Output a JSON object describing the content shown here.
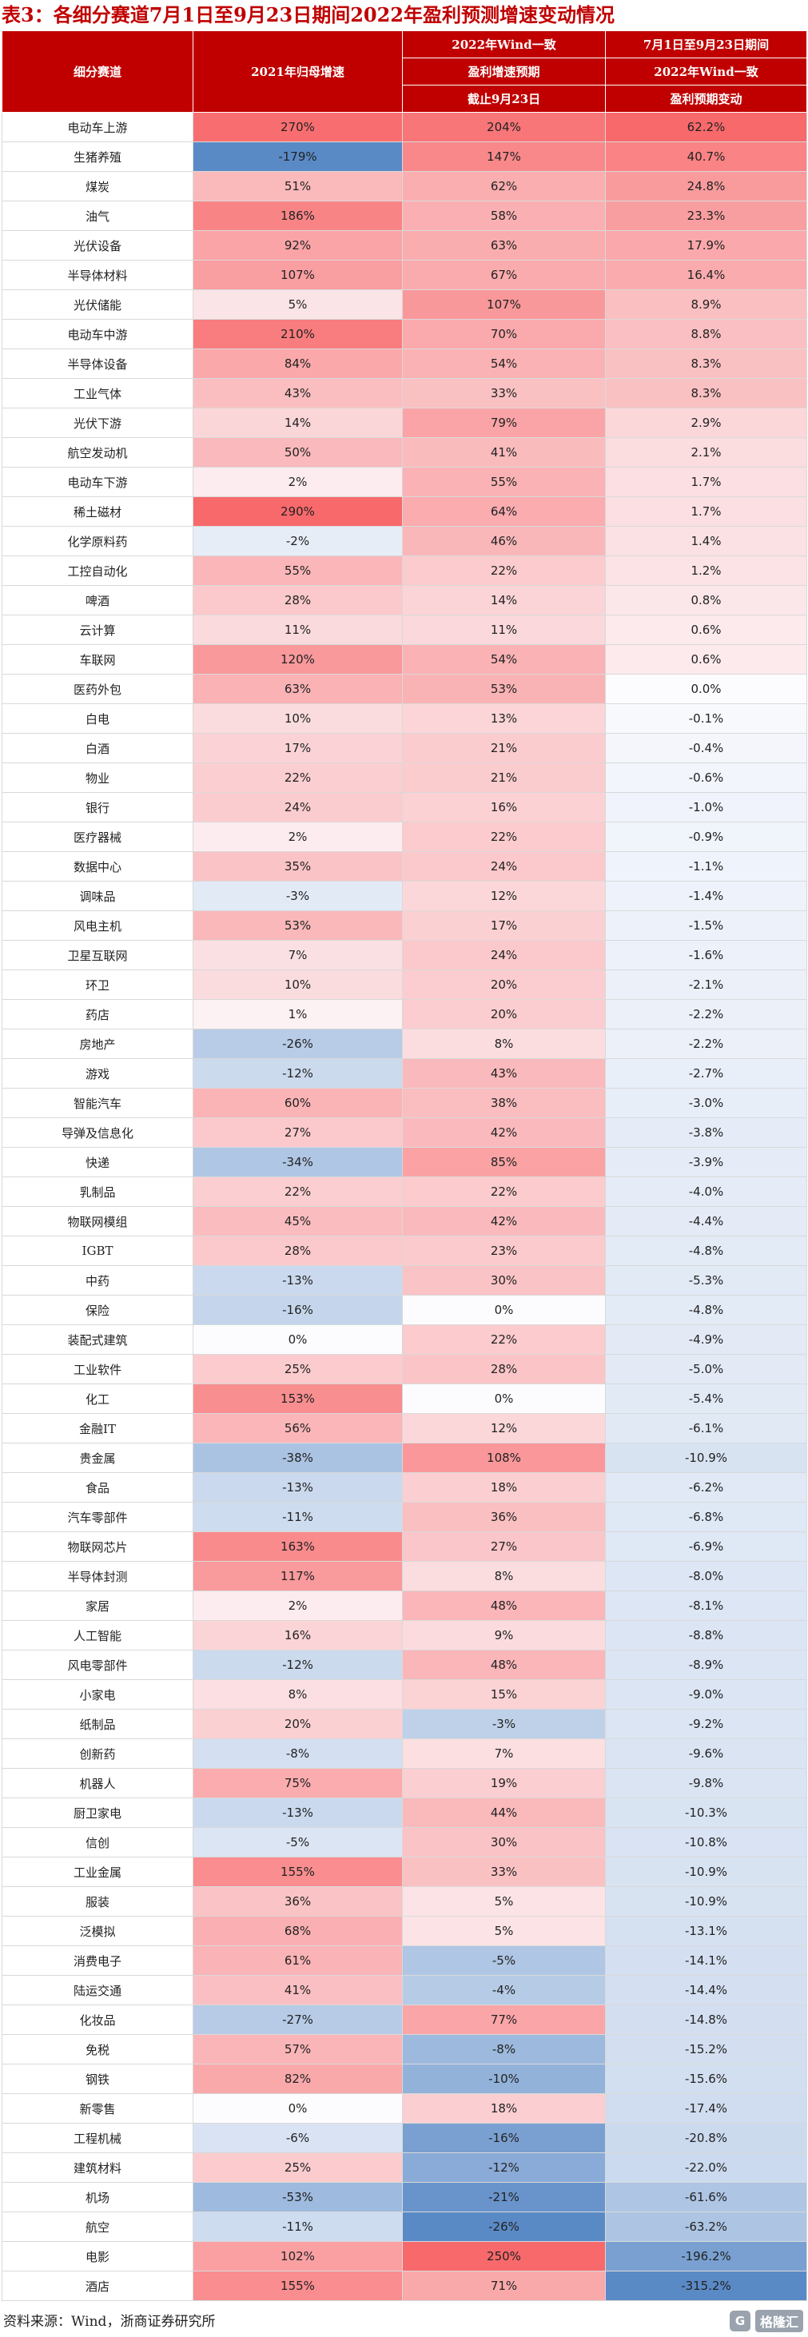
{
  "title": "表3：各细分赛道7月1日至9月23日期间2022年盈利预测增速变动情况",
  "headers": {
    "segment": "细分赛道",
    "growth2021": "2021年归母增速",
    "forecast_line1": "2022年Wind一致",
    "forecast_line2": "盈利增速预期",
    "forecast_line3": "截止9月23日",
    "change_line1": "7月1日至9月23日期间",
    "change_line2": "2022年Wind一致",
    "change_line3": "盈利预期变动"
  },
  "colors": {
    "header_bg": "#c00000",
    "positive": "#f8696b",
    "negative": "#5a8ac6"
  },
  "rows": [
    {
      "name": "电动车上游",
      "g21": "270%",
      "f22": "204%",
      "chg": "62.2%"
    },
    {
      "name": "生猪养殖",
      "g21": "-179%",
      "f22": "147%",
      "chg": "40.7%"
    },
    {
      "name": "煤炭",
      "g21": "51%",
      "f22": "62%",
      "chg": "24.8%"
    },
    {
      "name": "油气",
      "g21": "186%",
      "f22": "58%",
      "chg": "23.3%"
    },
    {
      "name": "光伏设备",
      "g21": "92%",
      "f22": "63%",
      "chg": "17.9%"
    },
    {
      "name": "半导体材料",
      "g21": "107%",
      "f22": "67%",
      "chg": "16.4%"
    },
    {
      "name": "光伏储能",
      "g21": "5%",
      "f22": "107%",
      "chg": "8.9%"
    },
    {
      "name": "电动车中游",
      "g21": "210%",
      "f22": "70%",
      "chg": "8.8%"
    },
    {
      "name": "半导体设备",
      "g21": "84%",
      "f22": "54%",
      "chg": "8.3%"
    },
    {
      "name": "工业气体",
      "g21": "43%",
      "f22": "33%",
      "chg": "8.3%"
    },
    {
      "name": "光伏下游",
      "g21": "14%",
      "f22": "79%",
      "chg": "2.9%"
    },
    {
      "name": "航空发动机",
      "g21": "50%",
      "f22": "41%",
      "chg": "2.1%"
    },
    {
      "name": "电动车下游",
      "g21": "2%",
      "f22": "55%",
      "chg": "1.7%"
    },
    {
      "name": "稀土磁材",
      "g21": "290%",
      "f22": "64%",
      "chg": "1.7%"
    },
    {
      "name": "化学原料药",
      "g21": "-2%",
      "f22": "46%",
      "chg": "1.4%"
    },
    {
      "name": "工控自动化",
      "g21": "55%",
      "f22": "22%",
      "chg": "1.2%"
    },
    {
      "name": "啤酒",
      "g21": "28%",
      "f22": "14%",
      "chg": "0.8%"
    },
    {
      "name": "云计算",
      "g21": "11%",
      "f22": "11%",
      "chg": "0.6%"
    },
    {
      "name": "车联网",
      "g21": "120%",
      "f22": "54%",
      "chg": "0.6%"
    },
    {
      "name": "医药外包",
      "g21": "63%",
      "f22": "53%",
      "chg": "0.0%"
    },
    {
      "name": "白电",
      "g21": "10%",
      "f22": "13%",
      "chg": "-0.1%"
    },
    {
      "name": "白酒",
      "g21": "17%",
      "f22": "21%",
      "chg": "-0.4%"
    },
    {
      "name": "物业",
      "g21": "22%",
      "f22": "21%",
      "chg": "-0.6%"
    },
    {
      "name": "银行",
      "g21": "24%",
      "f22": "16%",
      "chg": "-1.0%"
    },
    {
      "name": "医疗器械",
      "g21": "2%",
      "f22": "22%",
      "chg": "-0.9%"
    },
    {
      "name": "数据中心",
      "g21": "35%",
      "f22": "24%",
      "chg": "-1.1%"
    },
    {
      "name": "调味品",
      "g21": "-3%",
      "f22": "12%",
      "chg": "-1.4%"
    },
    {
      "name": "风电主机",
      "g21": "53%",
      "f22": "17%",
      "chg": "-1.5%"
    },
    {
      "name": "卫星互联网",
      "g21": "7%",
      "f22": "24%",
      "chg": "-1.6%"
    },
    {
      "name": "环卫",
      "g21": "10%",
      "f22": "20%",
      "chg": "-2.1%"
    },
    {
      "name": "药店",
      "g21": "1%",
      "f22": "20%",
      "chg": "-2.2%"
    },
    {
      "name": "房地产",
      "g21": "-26%",
      "f22": "8%",
      "chg": "-2.2%"
    },
    {
      "name": "游戏",
      "g21": "-12%",
      "f22": "43%",
      "chg": "-2.7%"
    },
    {
      "name": "智能汽车",
      "g21": "60%",
      "f22": "38%",
      "chg": "-3.0%"
    },
    {
      "name": "导弹及信息化",
      "g21": "27%",
      "f22": "42%",
      "chg": "-3.8%"
    },
    {
      "name": "快递",
      "g21": "-34%",
      "f22": "85%",
      "chg": "-3.9%"
    },
    {
      "name": "乳制品",
      "g21": "22%",
      "f22": "22%",
      "chg": "-4.0%"
    },
    {
      "name": "物联网模组",
      "g21": "45%",
      "f22": "42%",
      "chg": "-4.4%"
    },
    {
      "name": "IGBT",
      "g21": "28%",
      "f22": "23%",
      "chg": "-4.8%"
    },
    {
      "name": "中药",
      "g21": "-13%",
      "f22": "30%",
      "chg": "-5.3%"
    },
    {
      "name": "保险",
      "g21": "-16%",
      "f22": "0%",
      "chg": "-4.8%"
    },
    {
      "name": "装配式建筑",
      "g21": "0%",
      "f22": "22%",
      "chg": "-4.9%"
    },
    {
      "name": "工业软件",
      "g21": "25%",
      "f22": "28%",
      "chg": "-5.0%"
    },
    {
      "name": "化工",
      "g21": "153%",
      "f22": "0%",
      "chg": "-5.4%"
    },
    {
      "name": "金融IT",
      "g21": "56%",
      "f22": "12%",
      "chg": "-6.1%"
    },
    {
      "name": "贵金属",
      "g21": "-38%",
      "f22": "108%",
      "chg": "-10.9%"
    },
    {
      "name": "食品",
      "g21": "-13%",
      "f22": "18%",
      "chg": "-6.2%"
    },
    {
      "name": "汽车零部件",
      "g21": "-11%",
      "f22": "36%",
      "chg": "-6.8%"
    },
    {
      "name": "物联网芯片",
      "g21": "163%",
      "f22": "27%",
      "chg": "-6.9%"
    },
    {
      "name": "半导体封测",
      "g21": "117%",
      "f22": "8%",
      "chg": "-8.0%"
    },
    {
      "name": "家居",
      "g21": "2%",
      "f22": "48%",
      "chg": "-8.1%"
    },
    {
      "name": "人工智能",
      "g21": "16%",
      "f22": "9%",
      "chg": "-8.8%"
    },
    {
      "name": "风电零部件",
      "g21": "-12%",
      "f22": "48%",
      "chg": "-8.9%"
    },
    {
      "name": "小家电",
      "g21": "8%",
      "f22": "15%",
      "chg": "-9.0%"
    },
    {
      "name": "纸制品",
      "g21": "20%",
      "f22": "-3%",
      "chg": "-9.2%"
    },
    {
      "name": "创新药",
      "g21": "-8%",
      "f22": "7%",
      "chg": "-9.6%"
    },
    {
      "name": "机器人",
      "g21": "75%",
      "f22": "19%",
      "chg": "-9.8%"
    },
    {
      "name": "厨卫家电",
      "g21": "-13%",
      "f22": "44%",
      "chg": "-10.3%"
    },
    {
      "name": "信创",
      "g21": "-5%",
      "f22": "30%",
      "chg": "-10.8%"
    },
    {
      "name": "工业金属",
      "g21": "155%",
      "f22": "33%",
      "chg": "-10.9%"
    },
    {
      "name": "服装",
      "g21": "36%",
      "f22": "5%",
      "chg": "-10.9%"
    },
    {
      "name": "泛模拟",
      "g21": "68%",
      "f22": "5%",
      "chg": "-13.1%"
    },
    {
      "name": "消费电子",
      "g21": "61%",
      "f22": "-5%",
      "chg": "-14.1%"
    },
    {
      "name": "陆运交通",
      "g21": "41%",
      "f22": "-4%",
      "chg": "-14.4%"
    },
    {
      "name": "化妆品",
      "g21": "-27%",
      "f22": "77%",
      "chg": "-14.8%"
    },
    {
      "name": "免税",
      "g21": "57%",
      "f22": "-8%",
      "chg": "-15.2%"
    },
    {
      "name": "钢铁",
      "g21": "82%",
      "f22": "-10%",
      "chg": "-15.6%"
    },
    {
      "name": "新零售",
      "g21": "0%",
      "f22": "18%",
      "chg": "-17.4%"
    },
    {
      "name": "工程机械",
      "g21": "-6%",
      "f22": "-16%",
      "chg": "-20.8%"
    },
    {
      "name": "建筑材料",
      "g21": "25%",
      "f22": "-12%",
      "chg": "-22.0%"
    },
    {
      "name": "机场",
      "g21": "-53%",
      "f22": "-21%",
      "chg": "-61.6%"
    },
    {
      "name": "航空",
      "g21": "-11%",
      "f22": "-26%",
      "chg": "-63.2%"
    },
    {
      "name": "电影",
      "g21": "102%",
      "f22": "250%",
      "chg": "-196.2%"
    },
    {
      "name": "酒店",
      "g21": "155%",
      "f22": "71%",
      "chg": "-315.2%"
    }
  ],
  "footer": "资料来源：Wind，浙商证券研究所",
  "logo": {
    "mark": "G",
    "text": "格隆汇"
  }
}
